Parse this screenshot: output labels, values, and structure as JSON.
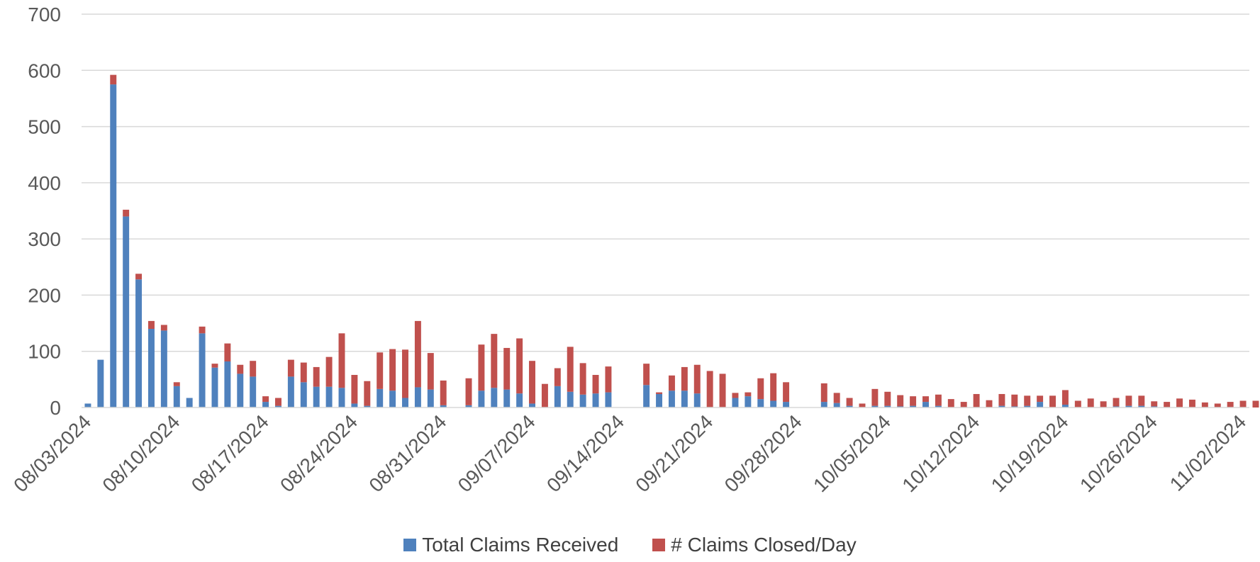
{
  "chart_data": {
    "type": "bar",
    "stacked": true,
    "x_type": "date",
    "x_start": "08/03/2024",
    "x_tick_labels": [
      "08/03/2024",
      "08/10/2024",
      "08/17/2024",
      "08/24/2024",
      "08/31/2024",
      "09/07/2024",
      "09/14/2024",
      "09/21/2024",
      "09/28/2024",
      "10/05/2024",
      "10/12/2024",
      "10/19/2024",
      "10/26/2024",
      "11/02/2024"
    ],
    "y_ticks": [
      "0",
      "100",
      "200",
      "300",
      "400",
      "500",
      "600",
      "700"
    ],
    "ylim": [
      0,
      700
    ],
    "grid": true,
    "legend_position": "bottom",
    "series": [
      {
        "name": "Total Claims Received",
        "color": "#4F81BD",
        "points": [
          [
            "08/03/2024",
            7
          ],
          [
            "08/04/2024",
            85
          ],
          [
            "08/05/2024",
            575
          ],
          [
            "08/06/2024",
            340
          ],
          [
            "08/07/2024",
            228
          ],
          [
            "08/08/2024",
            140
          ],
          [
            "08/09/2024",
            137
          ],
          [
            "08/10/2024",
            38
          ],
          [
            "08/11/2024",
            17
          ],
          [
            "08/12/2024",
            132
          ],
          [
            "08/13/2024",
            71
          ],
          [
            "08/14/2024",
            82
          ],
          [
            "08/15/2024",
            60
          ],
          [
            "08/16/2024",
            55
          ],
          [
            "08/17/2024",
            10
          ],
          [
            "08/18/2024",
            3
          ],
          [
            "08/19/2024",
            55
          ],
          [
            "08/20/2024",
            45
          ],
          [
            "08/21/2024",
            37
          ],
          [
            "08/22/2024",
            37
          ],
          [
            "08/23/2024",
            35
          ],
          [
            "08/24/2024",
            7
          ],
          [
            "08/25/2024",
            3
          ],
          [
            "08/26/2024",
            33
          ],
          [
            "08/27/2024",
            30
          ],
          [
            "08/28/2024",
            17
          ],
          [
            "08/29/2024",
            36
          ],
          [
            "08/30/2024",
            32
          ],
          [
            "08/31/2024",
            4
          ],
          [
            "09/02/2024",
            4
          ],
          [
            "09/03/2024",
            30
          ],
          [
            "09/04/2024",
            35
          ],
          [
            "09/05/2024",
            32
          ],
          [
            "09/06/2024",
            25
          ],
          [
            "09/07/2024",
            7
          ],
          [
            "09/09/2024",
            38
          ],
          [
            "09/10/2024",
            28
          ],
          [
            "09/11/2024",
            23
          ],
          [
            "09/12/2024",
            25
          ],
          [
            "09/13/2024",
            27
          ],
          [
            "09/16/2024",
            40
          ],
          [
            "09/17/2024",
            24
          ],
          [
            "09/18/2024",
            30
          ],
          [
            "09/19/2024",
            30
          ],
          [
            "09/20/2024",
            25
          ],
          [
            "09/23/2024",
            17
          ],
          [
            "09/24/2024",
            20
          ],
          [
            "09/25/2024",
            15
          ],
          [
            "09/26/2024",
            12
          ],
          [
            "09/27/2024",
            10
          ],
          [
            "09/30/2024",
            10
          ],
          [
            "10/01/2024",
            8
          ],
          [
            "10/02/2024",
            3
          ],
          [
            "10/04/2024",
            3
          ],
          [
            "10/05/2024",
            3
          ],
          [
            "10/06/2024",
            2
          ],
          [
            "10/07/2024",
            3
          ],
          [
            "10/08/2024",
            10
          ],
          [
            "10/09/2024",
            3
          ],
          [
            "10/14/2024",
            3
          ],
          [
            "10/15/2024",
            2
          ],
          [
            "10/16/2024",
            3
          ],
          [
            "10/17/2024",
            10
          ],
          [
            "10/19/2024",
            5
          ],
          [
            "10/23/2024",
            2
          ],
          [
            "10/24/2024",
            3
          ],
          [
            "10/25/2024",
            3
          ],
          [
            "10/26/2024",
            2
          ]
        ]
      },
      {
        "name": "# Claims Closed/Day",
        "color": "#C0504D",
        "points": [
          [
            "08/03/2024",
            0
          ],
          [
            "08/04/2024",
            0
          ],
          [
            "08/05/2024",
            17
          ],
          [
            "08/06/2024",
            12
          ],
          [
            "08/07/2024",
            10
          ],
          [
            "08/08/2024",
            14
          ],
          [
            "08/09/2024",
            10
          ],
          [
            "08/10/2024",
            7
          ],
          [
            "08/11/2024",
            0
          ],
          [
            "08/12/2024",
            12
          ],
          [
            "08/13/2024",
            7
          ],
          [
            "08/14/2024",
            32
          ],
          [
            "08/15/2024",
            16
          ],
          [
            "08/16/2024",
            28
          ],
          [
            "08/17/2024",
            10
          ],
          [
            "08/18/2024",
            14
          ],
          [
            "08/19/2024",
            30
          ],
          [
            "08/20/2024",
            35
          ],
          [
            "08/21/2024",
            35
          ],
          [
            "08/22/2024",
            53
          ],
          [
            "08/23/2024",
            97
          ],
          [
            "08/24/2024",
            51
          ],
          [
            "08/25/2024",
            44
          ],
          [
            "08/26/2024",
            65
          ],
          [
            "08/27/2024",
            74
          ],
          [
            "08/28/2024",
            86
          ],
          [
            "08/29/2024",
            118
          ],
          [
            "08/30/2024",
            65
          ],
          [
            "08/31/2024",
            44
          ],
          [
            "09/02/2024",
            48
          ],
          [
            "09/03/2024",
            82
          ],
          [
            "09/04/2024",
            96
          ],
          [
            "09/05/2024",
            74
          ],
          [
            "09/06/2024",
            98
          ],
          [
            "09/07/2024",
            76
          ],
          [
            "09/08/2024",
            42
          ],
          [
            "09/09/2024",
            32
          ],
          [
            "09/10/2024",
            80
          ],
          [
            "09/11/2024",
            56
          ],
          [
            "09/12/2024",
            33
          ],
          [
            "09/13/2024",
            46
          ],
          [
            "09/16/2024",
            38
          ],
          [
            "09/17/2024",
            3
          ],
          [
            "09/18/2024",
            27
          ],
          [
            "09/19/2024",
            42
          ],
          [
            "09/20/2024",
            51
          ],
          [
            "09/21/2024",
            65
          ],
          [
            "09/22/2024",
            60
          ],
          [
            "09/23/2024",
            9
          ],
          [
            "09/24/2024",
            7
          ],
          [
            "09/25/2024",
            37
          ],
          [
            "09/26/2024",
            49
          ],
          [
            "09/27/2024",
            35
          ],
          [
            "09/30/2024",
            33
          ],
          [
            "10/01/2024",
            18
          ],
          [
            "10/02/2024",
            14
          ],
          [
            "10/03/2024",
            7
          ],
          [
            "10/04/2024",
            30
          ],
          [
            "10/05/2024",
            25
          ],
          [
            "10/06/2024",
            20
          ],
          [
            "10/07/2024",
            17
          ],
          [
            "10/08/2024",
            10
          ],
          [
            "10/09/2024",
            20
          ],
          [
            "10/10/2024",
            15
          ],
          [
            "10/11/2024",
            10
          ],
          [
            "10/12/2024",
            24
          ],
          [
            "10/13/2024",
            13
          ],
          [
            "10/14/2024",
            21
          ],
          [
            "10/15/2024",
            21
          ],
          [
            "10/16/2024",
            18
          ],
          [
            "10/17/2024",
            11
          ],
          [
            "10/18/2024",
            21
          ],
          [
            "10/19/2024",
            26
          ],
          [
            "10/20/2024",
            12
          ],
          [
            "10/21/2024",
            16
          ],
          [
            "10/22/2024",
            11
          ],
          [
            "10/23/2024",
            15
          ],
          [
            "10/24/2024",
            18
          ],
          [
            "10/25/2024",
            18
          ],
          [
            "10/26/2024",
            9
          ],
          [
            "10/27/2024",
            10
          ],
          [
            "10/28/2024",
            16
          ],
          [
            "10/29/2024",
            14
          ],
          [
            "10/30/2024",
            9
          ],
          [
            "10/31/2024",
            7
          ],
          [
            "11/01/2024",
            10
          ],
          [
            "11/02/2024",
            12
          ],
          [
            "11/03/2024",
            12
          ]
        ]
      }
    ]
  }
}
